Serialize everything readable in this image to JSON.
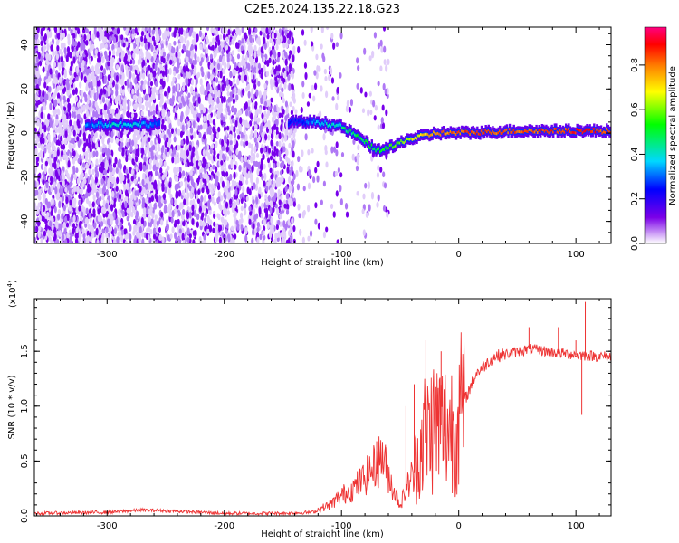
{
  "title": "C2E5.2024.135.22.18.G23",
  "chart_data": [
    {
      "type": "heatmap",
      "name": "spectrogram",
      "xlabel": "Height of straight line (km)",
      "ylabel": "Frequency (Hz)",
      "xlim": [
        -362,
        130
      ],
      "ylim": [
        -50,
        48
      ],
      "xticks": [
        -300,
        -200,
        -100,
        0,
        100
      ],
      "xtick_labels": [
        "-300",
        "-200",
        "-100",
        "0",
        "100"
      ],
      "yticks": [
        -40,
        -20,
        0,
        20,
        40
      ],
      "ytick_labels": [
        "-40",
        "-20",
        "0",
        "20",
        "40"
      ],
      "colorbar": {
        "label": "Normalized spectral amplitude",
        "range": [
          0,
          0.97
        ],
        "ticks": [
          0.0,
          0.2,
          0.4,
          0.6,
          0.8
        ],
        "tick_labels": [
          "0.0",
          "0.2",
          "0.4",
          "0.6",
          "0.8"
        ],
        "colors": [
          "#ffffff",
          "#7b00e8",
          "#0000ff",
          "#00d8ff",
          "#00ff00",
          "#ffff00",
          "#ff8000",
          "#ff0000",
          "#ff0080"
        ]
      },
      "noise_regions": [
        {
          "x": [
            -362,
            -255
          ],
          "density": 0.8
        },
        {
          "x": [
            -255,
            -140
          ],
          "density": 0.65
        },
        {
          "x": [
            -140,
            -60
          ],
          "density": 0.08
        }
      ],
      "signal_trace": [
        {
          "x": -318,
          "f": 4,
          "amp": 0.3
        },
        {
          "x": -300,
          "f": 4,
          "amp": 0.4
        },
        {
          "x": -280,
          "f": 4,
          "amp": 0.4
        },
        {
          "x": -260,
          "f": 4,
          "amp": 0.3
        },
        {
          "x": -140,
          "f": 5,
          "amp": 0.2
        },
        {
          "x": -120,
          "f": 5,
          "amp": 0.35
        },
        {
          "x": -100,
          "f": 3,
          "amp": 0.45
        },
        {
          "x": -85,
          "f": -2,
          "amp": 0.5
        },
        {
          "x": -70,
          "f": -8,
          "amp": 0.55
        },
        {
          "x": -55,
          "f": -6,
          "amp": 0.6
        },
        {
          "x": -45,
          "f": -3,
          "amp": 0.65
        },
        {
          "x": -35,
          "f": -2,
          "amp": 0.7
        },
        {
          "x": -20,
          "f": 0,
          "amp": 0.8
        },
        {
          "x": 0,
          "f": 0,
          "amp": 0.85
        },
        {
          "x": 50,
          "f": 1,
          "amp": 0.85
        },
        {
          "x": 100,
          "f": 1,
          "amp": 0.9
        },
        {
          "x": 130,
          "f": 1,
          "amp": 0.85
        }
      ]
    },
    {
      "type": "line",
      "name": "snr",
      "xlabel": "Height of straight line (km)",
      "ylabel": "SNR (10 * v/v)",
      "y_multiplier": "(x10",
      "y_exponent": "4",
      "y_multiplier_close": ")",
      "xlim": [
        -362,
        130
      ],
      "ylim": [
        0,
        1.98
      ],
      "xticks": [
        -300,
        -200,
        -100,
        0,
        100
      ],
      "xtick_labels": [
        "-300",
        "-200",
        "-100",
        "0",
        "100"
      ],
      "yticks": [
        0,
        0.5,
        1.0,
        1.5
      ],
      "ytick_labels": [
        "0.0",
        "0.5",
        "1.0",
        "1.5"
      ],
      "color": "#ee3333",
      "envelope": [
        {
          "x": -362,
          "y": 0.02
        },
        {
          "x": -300,
          "y": 0.03
        },
        {
          "x": -270,
          "y": 0.05
        },
        {
          "x": -240,
          "y": 0.04
        },
        {
          "x": -200,
          "y": 0.02
        },
        {
          "x": -150,
          "y": 0.02
        },
        {
          "x": -125,
          "y": 0.03
        },
        {
          "x": -110,
          "y": 0.08
        },
        {
          "x": -100,
          "y": 0.15
        },
        {
          "x": -90,
          "y": 0.2
        },
        {
          "x": -80,
          "y": 0.28
        },
        {
          "x": -70,
          "y": 0.38
        },
        {
          "x": -65,
          "y": 0.45
        },
        {
          "x": -58,
          "y": 0.25
        },
        {
          "x": -50,
          "y": 0.08
        },
        {
          "x": -40,
          "y": 0.3
        },
        {
          "x": -30,
          "y": 0.75
        },
        {
          "x": -20,
          "y": 0.85
        },
        {
          "x": -10,
          "y": 0.8
        },
        {
          "x": 0,
          "y": 0.88
        },
        {
          "x": 5,
          "y": 1.05
        },
        {
          "x": 15,
          "y": 1.3
        },
        {
          "x": 30,
          "y": 1.45
        },
        {
          "x": 60,
          "y": 1.52
        },
        {
          "x": 90,
          "y": 1.48
        },
        {
          "x": 110,
          "y": 1.46
        },
        {
          "x": 130,
          "y": 1.45
        }
      ],
      "spikes": [
        {
          "x": -70,
          "y": 0.68
        },
        {
          "x": -45,
          "y": 1.0
        },
        {
          "x": -38,
          "y": 1.2
        },
        {
          "x": -28,
          "y": 1.6
        },
        {
          "x": -15,
          "y": 1.5
        },
        {
          "x": 60,
          "y": 1.72
        },
        {
          "x": 85,
          "y": 1.72
        },
        {
          "x": 100,
          "y": 1.6
        },
        {
          "x": 108,
          "y": 1.95
        },
        {
          "x": 105,
          "y": 0.92
        }
      ]
    }
  ]
}
